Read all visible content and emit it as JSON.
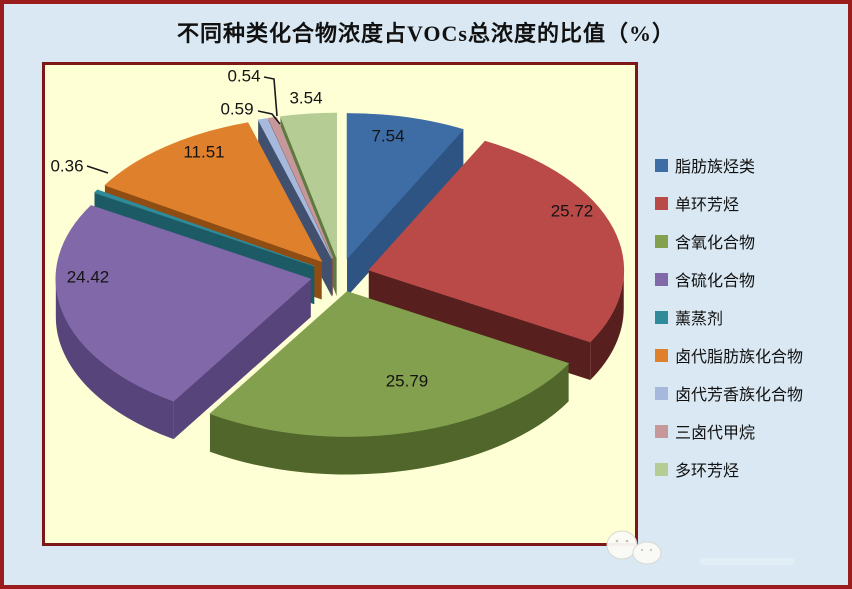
{
  "window": {
    "background_color": "#d9e8f2",
    "frame_color": "#9a1c1c"
  },
  "chart": {
    "title": "不同种类化合物浓度占VOCs总浓度的比值（%）",
    "plot_background": "#ffffd6",
    "plot_border_color": "#7e1818",
    "value_label_color": "#141414"
  },
  "chart_data": {
    "type": "pie",
    "style": "3d-exploded",
    "title": "不同种类化合物浓度占VOCs总浓度的比值（%）",
    "unit": "%",
    "legend_position": "right",
    "start_angle": "top",
    "direction": "clockwise",
    "series": [
      {
        "label": "脂肪族烃类",
        "value": 7.54,
        "color": "#3e6da5",
        "side_color": "#2e5484"
      },
      {
        "label": "单环芳烃",
        "value": 25.72,
        "color": "#ba4a47",
        "side_color": "#571f1e"
      },
      {
        "label": "含氧化合物",
        "value": 25.79,
        "color": "#82a04d",
        "side_color": "#50662a"
      },
      {
        "label": "含硫化合物",
        "value": 24.42,
        "color": "#8168a8",
        "side_color": "#57447a"
      },
      {
        "label": "薰蒸剂",
        "value": 0.36,
        "color": "#2f8a99",
        "side_color": "#1c5a66"
      },
      {
        "label": "卤代脂肪族化合物",
        "value": 11.51,
        "color": "#df802c",
        "side_color": "#8f4d13"
      },
      {
        "label": "卤代芳香族化合物",
        "value": 0.59,
        "color": "#a6b9dc",
        "side_color": "#41506e"
      },
      {
        "label": "三卤代甲烷",
        "value": 0.54,
        "color": "#c7989a",
        "side_color": "#7c5052"
      },
      {
        "label": "多环芳烃",
        "value": 3.54,
        "color": "#b6cc95",
        "side_color": "#5e7a40"
      }
    ]
  }
}
